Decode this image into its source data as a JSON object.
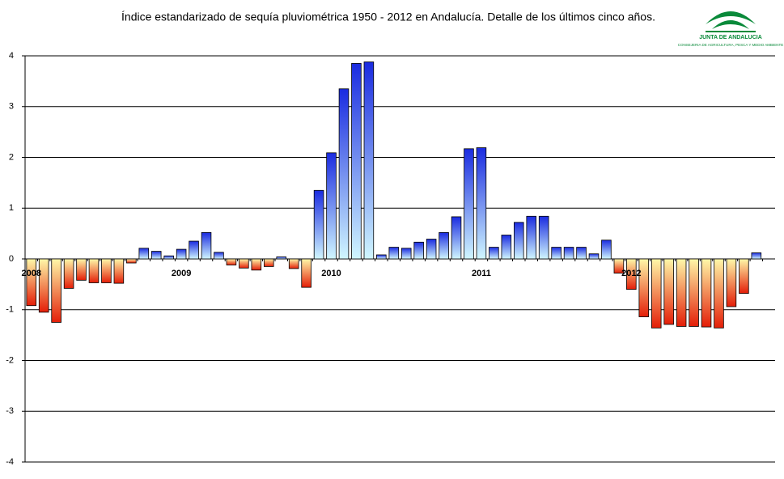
{
  "chart_data": {
    "type": "bar",
    "title": "Índice estandarizado de sequía pluviométrica 1950 - 2012 en Andalucía.  Detalle de los últimos cinco años.",
    "categories": [
      "2008",
      null,
      null,
      null,
      null,
      null,
      null,
      null,
      null,
      null,
      null,
      null,
      "2009",
      null,
      null,
      null,
      null,
      null,
      null,
      null,
      null,
      null,
      null,
      null,
      "2010",
      null,
      null,
      null,
      null,
      null,
      null,
      null,
      null,
      null,
      null,
      null,
      "2011",
      null,
      null,
      null,
      null,
      null,
      null,
      null,
      null,
      null,
      null,
      null,
      "2012",
      null,
      null,
      null,
      null,
      null,
      null,
      null,
      null,
      null,
      null,
      null
    ],
    "values": [
      -0.92,
      -1.05,
      -1.25,
      -0.58,
      -0.42,
      -0.47,
      -0.47,
      -0.48,
      -0.08,
      0.21,
      0.15,
      0.06,
      0.19,
      0.35,
      0.52,
      0.13,
      -0.12,
      -0.18,
      -0.22,
      -0.15,
      0.04,
      -0.19,
      -0.56,
      1.35,
      2.09,
      3.35,
      3.85,
      3.88,
      0.08,
      0.23,
      0.21,
      0.33,
      0.39,
      0.52,
      0.83,
      2.17,
      2.19,
      0.23,
      0.47,
      0.72,
      0.84,
      0.84,
      0.23,
      0.23,
      0.23,
      0.1,
      0.37,
      -0.28,
      -0.6,
      -1.14,
      -1.36,
      -1.29,
      -1.33,
      -1.33,
      -1.34,
      -1.36,
      -0.94,
      -0.68,
      0.12,
      null
    ],
    "positive_gradient": [
      "#1a2be0",
      "#d0f6ff"
    ],
    "negative_gradient": [
      "#fff8a8",
      "#e41e08"
    ],
    "ylim": [
      -4,
      4
    ],
    "yticks": [
      -4,
      -3,
      -2,
      -1,
      0,
      1,
      2,
      3,
      4
    ],
    "grid": true
  },
  "logo": {
    "name": "JUNTA DE ANDALUCIA",
    "department": "CONSEJERIA DE AGRICULTURA, PESCA Y MEDIO AMBIENTE"
  }
}
